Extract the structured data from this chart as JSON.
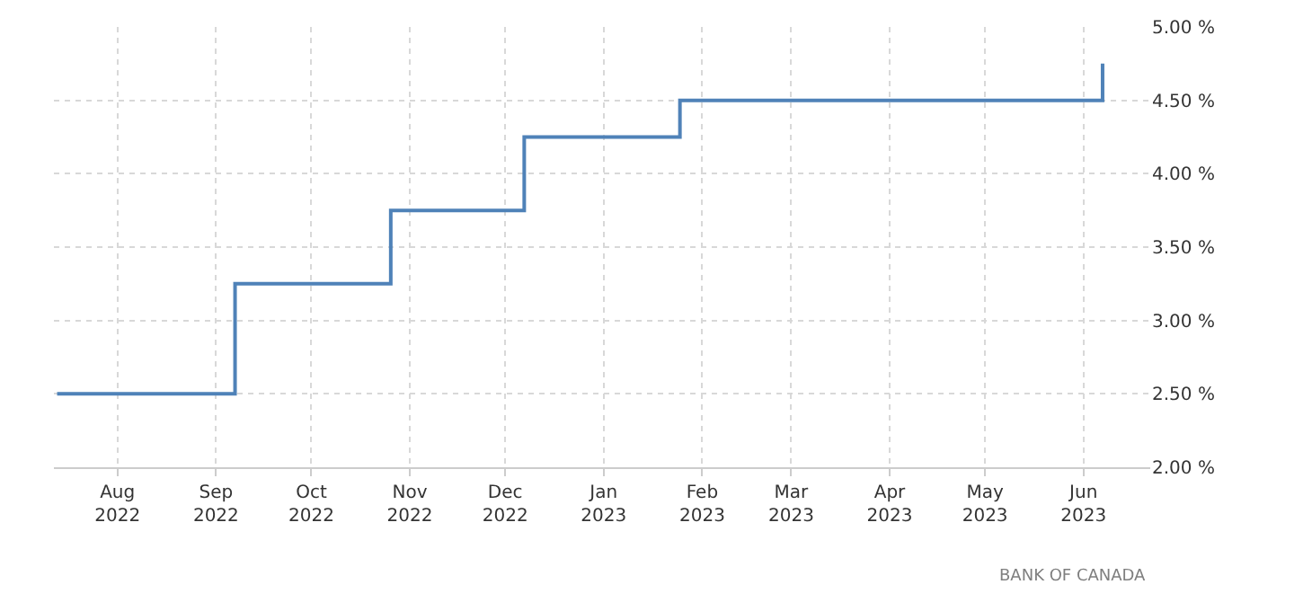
{
  "chart_data": {
    "type": "step",
    "x": [
      "2022-07-13",
      "2022-09-07",
      "2022-10-26",
      "2022-12-07",
      "2023-01-25",
      "2023-06-07"
    ],
    "series": [
      {
        "color": "#4f82b8",
        "values": [
          2.5,
          3.25,
          3.75,
          4.25,
          4.5,
          4.75
        ]
      }
    ],
    "xlim": [
      "2022-07-12",
      "2023-06-22"
    ],
    "xticks": [
      {
        "value": "2022-08-01",
        "label": "Aug 2022"
      },
      {
        "value": "2022-09-01",
        "label": "Sep 2022"
      },
      {
        "value": "2022-10-01",
        "label": "Oct 2022"
      },
      {
        "value": "2022-11-01",
        "label": "Nov 2022"
      },
      {
        "value": "2022-12-01",
        "label": "Dec 2022"
      },
      {
        "value": "2023-01-01",
        "label": "Jan 2023"
      },
      {
        "value": "2023-02-01",
        "label": "Feb 2023"
      },
      {
        "value": "2023-03-01",
        "label": "Mar 2023"
      },
      {
        "value": "2023-04-01",
        "label": "Apr 2023"
      },
      {
        "value": "2023-05-01",
        "label": "May 2023"
      },
      {
        "value": "2023-06-01",
        "label": "Jun 2023"
      }
    ],
    "ylim": [
      2,
      5
    ],
    "yticks": [
      {
        "value": 2,
        "label": "2.00 %"
      },
      {
        "value": 2.5,
        "label": "2.50 %"
      },
      {
        "value": 3,
        "label": "3.00 %"
      },
      {
        "value": 3.5,
        "label": "3.50 %"
      },
      {
        "value": 4,
        "label": "4.00 %"
      },
      {
        "value": 4.5,
        "label": "4.50 %"
      },
      {
        "value": 5,
        "label": "5.00 %"
      }
    ],
    "grid": true,
    "legend": false,
    "annotations": [
      "BANK OF CANADA"
    ]
  }
}
